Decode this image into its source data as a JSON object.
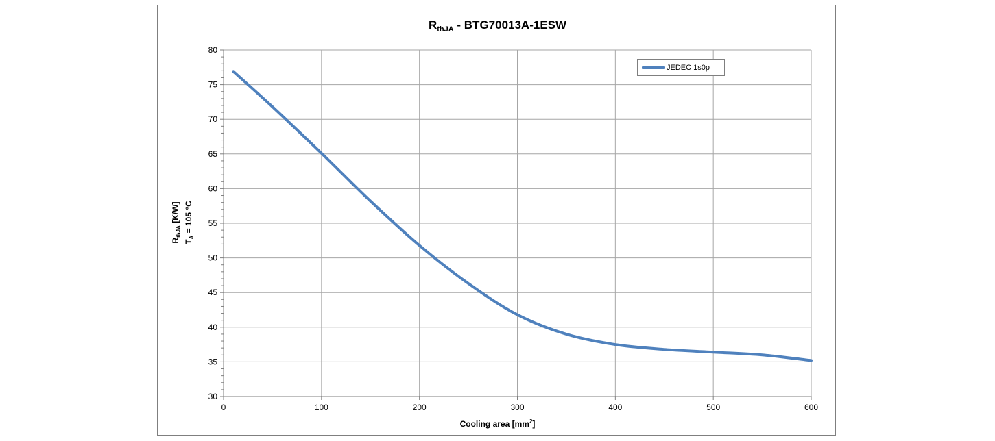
{
  "chart_data": {
    "type": "line",
    "title_main": "R",
    "title_sub": "thJA",
    "title_rest": " - BTG70013A-1ESW",
    "ylabel_line1_main": "R",
    "ylabel_line1_sub": "thJA",
    "ylabel_line1_rest": " [K/W]",
    "ylabel_line2_main": "T",
    "ylabel_line2_sub": "A",
    "ylabel_line2_rest": " = 105 °C",
    "xlabel_main": "Cooling area [mm",
    "xlabel_sup": "2",
    "xlabel_end": "]",
    "xlim": [
      0,
      600
    ],
    "ylim": [
      30,
      80
    ],
    "x_ticks": [
      0,
      100,
      200,
      300,
      400,
      500,
      600
    ],
    "y_ticks": [
      30,
      35,
      40,
      45,
      50,
      55,
      60,
      65,
      70,
      75,
      80
    ],
    "grid": true,
    "legend_position": "top-right",
    "series": [
      {
        "name": "JEDEC 1s0p",
        "color": "#4f81bd",
        "x": [
          10,
          50,
          100,
          150,
          200,
          250,
          300,
          350,
          400,
          450,
          500,
          550,
          600
        ],
        "y": [
          76.9,
          71.8,
          65.1,
          58.2,
          51.8,
          46.3,
          41.8,
          39.0,
          37.5,
          36.8,
          36.4,
          36.0,
          35.2
        ]
      }
    ]
  }
}
